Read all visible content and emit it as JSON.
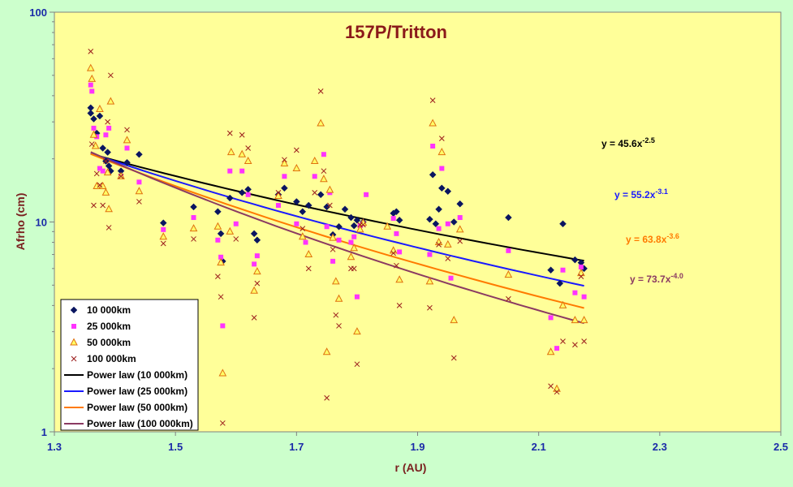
{
  "colors": {
    "page_bg": "#ccffcc",
    "plot_bg": "#ffff99",
    "axis": "#808080"
  },
  "chart_data": {
    "type": "scatter",
    "title": "157P/Tritton",
    "xlabel": "r (AU)",
    "ylabel": "Afrho (cm)",
    "xlim": [
      1.3,
      2.5
    ],
    "ylim": [
      1,
      100
    ],
    "y_scale": "log",
    "x_ticks": [
      "1.3",
      "1.5",
      "1.7",
      "1.9",
      "2.1",
      "2.3",
      "2.5"
    ],
    "y_ticks": [
      "1",
      "10",
      "100"
    ],
    "grid": false,
    "legend_position": "bottom-left",
    "series": [
      {
        "name": "10 000km",
        "marker": "diamond",
        "color": "#0a1560",
        "points": [
          [
            1.36,
            35
          ],
          [
            1.36,
            33
          ],
          [
            1.365,
            31
          ],
          [
            1.37,
            26.5
          ],
          [
            1.375,
            32
          ],
          [
            1.38,
            22.5
          ],
          [
            1.385,
            19.5
          ],
          [
            1.388,
            21.5
          ],
          [
            1.39,
            18.5
          ],
          [
            1.393,
            17.5
          ],
          [
            1.41,
            17.5
          ],
          [
            1.42,
            19.2
          ],
          [
            1.44,
            21
          ],
          [
            1.48,
            9.9
          ],
          [
            1.53,
            11.8
          ],
          [
            1.57,
            11.2
          ],
          [
            1.575,
            8.8
          ],
          [
            1.578,
            6.5
          ],
          [
            1.59,
            13
          ],
          [
            1.61,
            13.8
          ],
          [
            1.62,
            14.3
          ],
          [
            1.63,
            8.8
          ],
          [
            1.635,
            8.2
          ],
          [
            1.67,
            13.5
          ],
          [
            1.68,
            14.5
          ],
          [
            1.7,
            12.5
          ],
          [
            1.71,
            11.2
          ],
          [
            1.72,
            12
          ],
          [
            1.74,
            13.5
          ],
          [
            1.75,
            11.8
          ],
          [
            1.76,
            8.7
          ],
          [
            1.77,
            9.5
          ],
          [
            1.78,
            11.5
          ],
          [
            1.79,
            10.5
          ],
          [
            1.795,
            9.6
          ],
          [
            1.8,
            10.2
          ],
          [
            1.81,
            10
          ],
          [
            1.86,
            11
          ],
          [
            1.865,
            11.2
          ],
          [
            1.87,
            10.2
          ],
          [
            1.92,
            10.3
          ],
          [
            1.925,
            16.8
          ],
          [
            1.93,
            9.8
          ],
          [
            1.935,
            11.5
          ],
          [
            1.94,
            14.5
          ],
          [
            1.95,
            14
          ],
          [
            1.96,
            10
          ],
          [
            1.97,
            12.2
          ],
          [
            2.05,
            10.5
          ],
          [
            2.12,
            5.9
          ],
          [
            2.135,
            5.1
          ],
          [
            2.14,
            9.8
          ],
          [
            2.16,
            6.6
          ],
          [
            2.17,
            6.4
          ],
          [
            2.175,
            6.0
          ]
        ]
      },
      {
        "name": "25 000km",
        "marker": "square",
        "color": "#ff33ff",
        "points": [
          [
            1.36,
            45
          ],
          [
            1.362,
            42
          ],
          [
            1.365,
            28
          ],
          [
            1.37,
            25.5
          ],
          [
            1.375,
            18
          ],
          [
            1.38,
            17.5
          ],
          [
            1.385,
            26
          ],
          [
            1.39,
            28
          ],
          [
            1.41,
            16.5
          ],
          [
            1.42,
            22.5
          ],
          [
            1.44,
            15.5
          ],
          [
            1.48,
            9.2
          ],
          [
            1.53,
            10.5
          ],
          [
            1.57,
            8.2
          ],
          [
            1.575,
            6.8
          ],
          [
            1.578,
            3.2
          ],
          [
            1.59,
            17.5
          ],
          [
            1.6,
            9.8
          ],
          [
            1.61,
            17.5
          ],
          [
            1.62,
            13.5
          ],
          [
            1.63,
            6.3
          ],
          [
            1.635,
            6.9
          ],
          [
            1.67,
            12
          ],
          [
            1.68,
            16.5
          ],
          [
            1.7,
            9.8
          ],
          [
            1.715,
            8
          ],
          [
            1.73,
            16.5
          ],
          [
            1.745,
            21
          ],
          [
            1.75,
            9.5
          ],
          [
            1.755,
            13.8
          ],
          [
            1.76,
            6.5
          ],
          [
            1.77,
            8.2
          ],
          [
            1.79,
            8
          ],
          [
            1.795,
            8.5
          ],
          [
            1.8,
            4.4
          ],
          [
            1.805,
            9.6
          ],
          [
            1.81,
            9.8
          ],
          [
            1.815,
            13.5
          ],
          [
            1.86,
            10.4
          ],
          [
            1.865,
            8.8
          ],
          [
            1.87,
            7.2
          ],
          [
            1.92,
            7
          ],
          [
            1.925,
            23
          ],
          [
            1.935,
            9.3
          ],
          [
            1.94,
            18
          ],
          [
            1.95,
            9.8
          ],
          [
            1.955,
            5.4
          ],
          [
            1.97,
            10.5
          ],
          [
            2.05,
            7.3
          ],
          [
            2.12,
            3.5
          ],
          [
            2.13,
            2.5
          ],
          [
            2.14,
            5.9
          ],
          [
            2.16,
            4.6
          ],
          [
            2.17,
            6.1
          ],
          [
            2.175,
            4.4
          ]
        ]
      },
      {
        "name": "50 000km",
        "marker": "triangle",
        "color": "#e07010",
        "points": [
          [
            1.36,
            54
          ],
          [
            1.362,
            48
          ],
          [
            1.365,
            26
          ],
          [
            1.368,
            23
          ],
          [
            1.37,
            14.8
          ],
          [
            1.375,
            34.5
          ],
          [
            1.38,
            14.8
          ],
          [
            1.385,
            13.8
          ],
          [
            1.388,
            17.2
          ],
          [
            1.39,
            11.5
          ],
          [
            1.393,
            37.5
          ],
          [
            1.41,
            16.5
          ],
          [
            1.42,
            24.5
          ],
          [
            1.44,
            14
          ],
          [
            1.48,
            8.5
          ],
          [
            1.53,
            9.3
          ],
          [
            1.57,
            9.5
          ],
          [
            1.575,
            6.4
          ],
          [
            1.578,
            1.9
          ],
          [
            1.59,
            9
          ],
          [
            1.592,
            21.5
          ],
          [
            1.61,
            21
          ],
          [
            1.62,
            19.5
          ],
          [
            1.63,
            4.7
          ],
          [
            1.635,
            5.8
          ],
          [
            1.67,
            13.3
          ],
          [
            1.68,
            19
          ],
          [
            1.7,
            18
          ],
          [
            1.71,
            8.5
          ],
          [
            1.72,
            7
          ],
          [
            1.73,
            19.5
          ],
          [
            1.74,
            29.5
          ],
          [
            1.745,
            16
          ],
          [
            1.75,
            2.4
          ],
          [
            1.755,
            14.2
          ],
          [
            1.76,
            8.4
          ],
          [
            1.765,
            5.2
          ],
          [
            1.77,
            4.3
          ],
          [
            1.79,
            6.8
          ],
          [
            1.795,
            7.5
          ],
          [
            1.8,
            3.0
          ],
          [
            1.805,
            9.2
          ],
          [
            1.81,
            9.9
          ],
          [
            1.85,
            9.5
          ],
          [
            1.86,
            7.3
          ],
          [
            1.87,
            5.3
          ],
          [
            1.92,
            5.2
          ],
          [
            1.925,
            29.5
          ],
          [
            1.935,
            8
          ],
          [
            1.94,
            21.5
          ],
          [
            1.95,
            7.8
          ],
          [
            1.96,
            3.4
          ],
          [
            1.97,
            9.2
          ],
          [
            2.05,
            5.6
          ],
          [
            2.12,
            2.4
          ],
          [
            2.13,
            1.6
          ],
          [
            2.14,
            4.0
          ],
          [
            2.16,
            3.4
          ],
          [
            2.17,
            5.7
          ],
          [
            2.175,
            3.4
          ]
        ]
      },
      {
        "name": "100 000km",
        "marker": "x",
        "color": "#9b1c1c",
        "points": [
          [
            1.36,
            65
          ],
          [
            1.362,
            23.5
          ],
          [
            1.365,
            12
          ],
          [
            1.37,
            17
          ],
          [
            1.375,
            15
          ],
          [
            1.38,
            12
          ],
          [
            1.385,
            19.5
          ],
          [
            1.388,
            30
          ],
          [
            1.39,
            9.4
          ],
          [
            1.393,
            50
          ],
          [
            1.41,
            16.5
          ],
          [
            1.42,
            27.5
          ],
          [
            1.44,
            12.5
          ],
          [
            1.48,
            7.9
          ],
          [
            1.53,
            8.3
          ],
          [
            1.57,
            5.5
          ],
          [
            1.575,
            4.4
          ],
          [
            1.578,
            1.1
          ],
          [
            1.59,
            26.5
          ],
          [
            1.6,
            8.3
          ],
          [
            1.61,
            26
          ],
          [
            1.62,
            22.5
          ],
          [
            1.63,
            3.5
          ],
          [
            1.635,
            5.1
          ],
          [
            1.67,
            13.8
          ],
          [
            1.68,
            19.8
          ],
          [
            1.7,
            22
          ],
          [
            1.71,
            9.3
          ],
          [
            1.72,
            6
          ],
          [
            1.73,
            13.8
          ],
          [
            1.74,
            42
          ],
          [
            1.745,
            17.5
          ],
          [
            1.75,
            1.45
          ],
          [
            1.755,
            12
          ],
          [
            1.76,
            7.4
          ],
          [
            1.765,
            3.6
          ],
          [
            1.77,
            3.2
          ],
          [
            1.79,
            6
          ],
          [
            1.795,
            6
          ],
          [
            1.8,
            2.1
          ],
          [
            1.805,
            9.7
          ],
          [
            1.81,
            9.7
          ],
          [
            1.86,
            7.1
          ],
          [
            1.865,
            6.2
          ],
          [
            1.87,
            4
          ],
          [
            1.92,
            3.9
          ],
          [
            1.925,
            38
          ],
          [
            1.935,
            7.8
          ],
          [
            1.94,
            25
          ],
          [
            1.95,
            6.7
          ],
          [
            1.96,
            2.25
          ],
          [
            1.97,
            8.1
          ],
          [
            2.05,
            4.3
          ],
          [
            2.12,
            1.65
          ],
          [
            2.13,
            1.55
          ],
          [
            2.14,
            2.7
          ],
          [
            2.16,
            2.6
          ],
          [
            2.17,
            5.5
          ],
          [
            2.175,
            2.7
          ]
        ]
      }
    ],
    "fits": [
      {
        "name": "Power law (10 000km)",
        "a": 45.6,
        "b": -2.5,
        "label": "y = 45.6x",
        "exp": "-2.5",
        "color": "#000000",
        "x_range": [
          1.36,
          2.175
        ]
      },
      {
        "name": "Power law (25 000km)",
        "a": 55.2,
        "b": -3.1,
        "label": "y = 55.2x",
        "exp": "-3.1",
        "color": "#1a1aff",
        "x_range": [
          1.36,
          2.175
        ]
      },
      {
        "name": "Power law (50 000km)",
        "a": 63.8,
        "b": -3.6,
        "label": "y = 63.8x",
        "exp": "-3.6",
        "color": "#ff7a00",
        "x_range": [
          1.36,
          2.175
        ]
      },
      {
        "name": "Power law (100 000km)",
        "a": 73.7,
        "b": -4.0,
        "label": "y = 73.7x",
        "exp": "-4.0",
        "color": "#8b3a62",
        "x_range": [
          1.36,
          2.175
        ]
      }
    ]
  }
}
